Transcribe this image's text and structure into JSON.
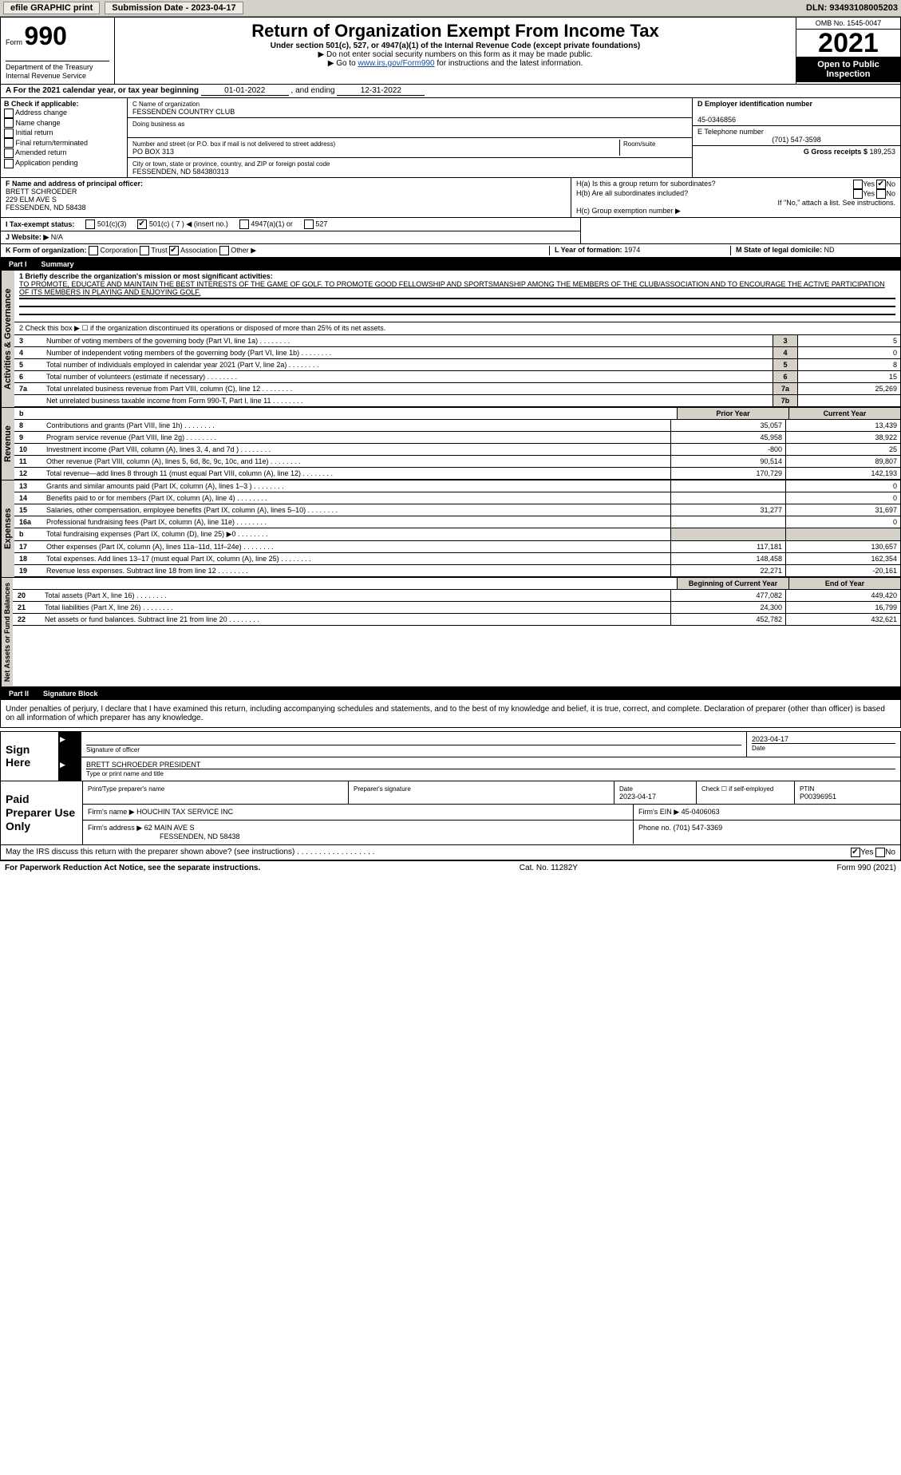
{
  "topbar": {
    "efile": "efile GRAPHIC print",
    "submission_label": "Submission Date - 2023-04-17",
    "dln": "DLN: 93493108005203"
  },
  "header": {
    "form_prefix": "Form",
    "form_number": "990",
    "dept1": "Department of the Treasury",
    "dept2": "Internal Revenue Service",
    "title": "Return of Organization Exempt From Income Tax",
    "sub1": "Under section 501(c), 527, or 4947(a)(1) of the Internal Revenue Code (except private foundations)",
    "sub2": "▶ Do not enter social security numbers on this form as it may be made public.",
    "sub3a": "▶ Go to ",
    "sub3_link": "www.irs.gov/Form990",
    "sub3b": " for instructions and the latest information.",
    "omb": "OMB No. 1545-0047",
    "year": "2021",
    "open_pub": "Open to Public Inspection"
  },
  "rowA": {
    "prefix": "A For the 2021 calendar year, or tax year beginning ",
    "begin": "01-01-2022",
    "mid": " , and ending ",
    "end": "12-31-2022"
  },
  "blockB": {
    "label": "B Check if applicable:",
    "opts": [
      "Address change",
      "Name change",
      "Initial return",
      "Final return/terminated",
      "Amended return",
      "Application pending"
    ],
    "c_name_lbl": "C Name of organization",
    "c_name": "FESSENDEN COUNTRY CLUB",
    "dba_lbl": "Doing business as",
    "dba": "",
    "street_lbl": "Number and street (or P.O. box if mail is not delivered to street address)",
    "room_lbl": "Room/suite",
    "street": "PO BOX 313",
    "city_lbl": "City or town, state or province, country, and ZIP or foreign postal code",
    "city": "FESSENDEN, ND  584380313",
    "d_lbl": "D Employer identification number",
    "d_val": "45-0346856",
    "e_lbl": "E Telephone number",
    "e_val": "(701) 547-3598",
    "g_lbl": "G Gross receipts $ ",
    "g_val": "189,253"
  },
  "rowF": {
    "f_lbl": "F Name and address of principal officer:",
    "f_name": "BRETT SCHROEDER",
    "f_addr1": "229 ELM AVE S",
    "f_addr2": "FESSENDEN, ND  58438",
    "ha": "H(a)  Is this a group return for subordinates?",
    "ha_no_checked": true,
    "hb": "H(b)  Are all subordinates included?",
    "hb_note": "If \"No,\" attach a list. See instructions.",
    "hc": "H(c)  Group exemption number ▶"
  },
  "rowI": {
    "lbl": "I  Tax-exempt status:",
    "o1": "501(c)(3)",
    "o2": "501(c) ( 7 ) ◀ (insert no.)",
    "o3": "4947(a)(1) or",
    "o4": "527"
  },
  "rowJ": {
    "lbl": "J  Website: ▶",
    "val": " N/A"
  },
  "rowK": {
    "lbl": "K Form of organization:",
    "opts": [
      "Corporation",
      "Trust",
      "Association",
      "Other ▶"
    ],
    "checked_idx": 2,
    "L_lbl": "L Year of formation: ",
    "L_val": "1974",
    "M_lbl": "M State of legal domicile: ",
    "M_val": "ND"
  },
  "partI": {
    "hdr_part": "Part I",
    "hdr_title": "Summary",
    "side1": "Activities & Governance",
    "side2": "Revenue",
    "side3": "Expenses",
    "side4": "Net Assets or Fund Balances",
    "l1": "1  Briefly describe the organization's mission or most significant activities:",
    "mission": "TO PROMOTE, EDUCATE AND MAINTAIN THE BEST INTERESTS OF THE GAME OF GOLF. TO PROMOTE GOOD FELLOWSHIP AND SPORTSMANSHIP AMONG THE MEMBERS OF THE CLUB/ASSOCIATION AND TO ENCOURAGE THE ACTIVE PARTICIPATION OF ITS MEMBERS IN PLAYING AND ENJOYING GOLF.",
    "l2": "2  Check this box ▶ ☐ if the organization discontinued its operations or disposed of more than 25% of its net assets.",
    "lines_ag": [
      {
        "n": "3",
        "d": "Number of voting members of the governing body (Part VI, line 1a)",
        "lbl": "3",
        "v": "5"
      },
      {
        "n": "4",
        "d": "Number of independent voting members of the governing body (Part VI, line 1b)",
        "lbl": "4",
        "v": "0"
      },
      {
        "n": "5",
        "d": "Total number of individuals employed in calendar year 2021 (Part V, line 2a)",
        "lbl": "5",
        "v": "8"
      },
      {
        "n": "6",
        "d": "Total number of volunteers (estimate if necessary)",
        "lbl": "6",
        "v": "15"
      },
      {
        "n": "7a",
        "d": "Total unrelated business revenue from Part VIII, column (C), line 12",
        "lbl": "7a",
        "v": "25,269"
      },
      {
        "n": "",
        "d": "Net unrelated business taxable income from Form 990-T, Part I, line 11",
        "lbl": "7b",
        "v": ""
      }
    ],
    "col_hdr_b": "b",
    "col_hdr_prior": "Prior Year",
    "col_hdr_curr": "Current Year",
    "rev": [
      {
        "n": "8",
        "d": "Contributions and grants (Part VIII, line 1h)",
        "p": "35,057",
        "c": "13,439"
      },
      {
        "n": "9",
        "d": "Program service revenue (Part VIII, line 2g)",
        "p": "45,958",
        "c": "38,922"
      },
      {
        "n": "10",
        "d": "Investment income (Part VIII, column (A), lines 3, 4, and 7d )",
        "p": "-800",
        "c": "25"
      },
      {
        "n": "11",
        "d": "Other revenue (Part VIII, column (A), lines 5, 6d, 8c, 9c, 10c, and 11e)",
        "p": "90,514",
        "c": "89,807"
      },
      {
        "n": "12",
        "d": "Total revenue—add lines 8 through 11 (must equal Part VIII, column (A), line 12)",
        "p": "170,729",
        "c": "142,193"
      }
    ],
    "exp": [
      {
        "n": "13",
        "d": "Grants and similar amounts paid (Part IX, column (A), lines 1–3 )",
        "p": "",
        "c": "0"
      },
      {
        "n": "14",
        "d": "Benefits paid to or for members (Part IX, column (A), line 4)",
        "p": "",
        "c": "0"
      },
      {
        "n": "15",
        "d": "Salaries, other compensation, employee benefits (Part IX, column (A), lines 5–10)",
        "p": "31,277",
        "c": "31,697"
      },
      {
        "n": "16a",
        "d": "Professional fundraising fees (Part IX, column (A), line 11e)",
        "p": "",
        "c": "0"
      },
      {
        "n": "b",
        "d": "Total fundraising expenses (Part IX, column (D), line 25) ▶0",
        "p": "SHADE",
        "c": "SHADE"
      },
      {
        "n": "17",
        "d": "Other expenses (Part IX, column (A), lines 11a–11d, 11f–24e)",
        "p": "117,181",
        "c": "130,657"
      },
      {
        "n": "18",
        "d": "Total expenses. Add lines 13–17 (must equal Part IX, column (A), line 25)",
        "p": "148,458",
        "c": "162,354"
      },
      {
        "n": "19",
        "d": "Revenue less expenses. Subtract line 18 from line 12",
        "p": "22,271",
        "c": "-20,161"
      }
    ],
    "na_hdr1": "Beginning of Current Year",
    "na_hdr2": "End of Year",
    "na": [
      {
        "n": "20",
        "d": "Total assets (Part X, line 16)",
        "p": "477,082",
        "c": "449,420"
      },
      {
        "n": "21",
        "d": "Total liabilities (Part X, line 26)",
        "p": "24,300",
        "c": "16,799"
      },
      {
        "n": "22",
        "d": "Net assets or fund balances. Subtract line 21 from line 20",
        "p": "452,782",
        "c": "432,621"
      }
    ]
  },
  "partII": {
    "hdr_part": "Part II",
    "hdr_title": "Signature Block",
    "penalty": "Under penalties of perjury, I declare that I have examined this return, including accompanying schedules and statements, and to the best of my knowledge and belief, it is true, correct, and complete. Declaration of preparer (other than officer) is based on all information of which preparer has any knowledge.",
    "sign_here": "Sign Here",
    "sig_officer": "Signature of officer",
    "sig_date": "2023-04-17",
    "date_lbl": "Date",
    "name_title": "BRETT SCHROEDER PRESIDENT",
    "name_title_lbl": "Type or print name and title",
    "paid_lbl": "Paid Preparer Use Only",
    "p_name_lbl": "Print/Type preparer's name",
    "p_sig_lbl": "Preparer's signature",
    "p_date_lbl": "Date",
    "p_date": "2023-04-17",
    "p_check_lbl": "Check ☐ if self-employed",
    "ptin_lbl": "PTIN",
    "ptin": "P00396951",
    "firm_name_lbl": "Firm's name    ▶ ",
    "firm_name": "HOUCHIN TAX SERVICE INC",
    "firm_ein_lbl": "Firm's EIN ▶ ",
    "firm_ein": "45-0406063",
    "firm_addr_lbl": "Firm's address ▶ ",
    "firm_addr1": "62 MAIN AVE S",
    "firm_addr2": "FESSENDEN, ND  58438",
    "phone_lbl": "Phone no. ",
    "phone": "(701) 547-3369",
    "may_irs": "May the IRS discuss this return with the preparer shown above? (see instructions)",
    "yes": "Yes",
    "no": "No",
    "pra": "For Paperwork Reduction Act Notice, see the separate instructions.",
    "cat": "Cat. No. 11282Y",
    "form_foot": "Form 990 (2021)"
  }
}
